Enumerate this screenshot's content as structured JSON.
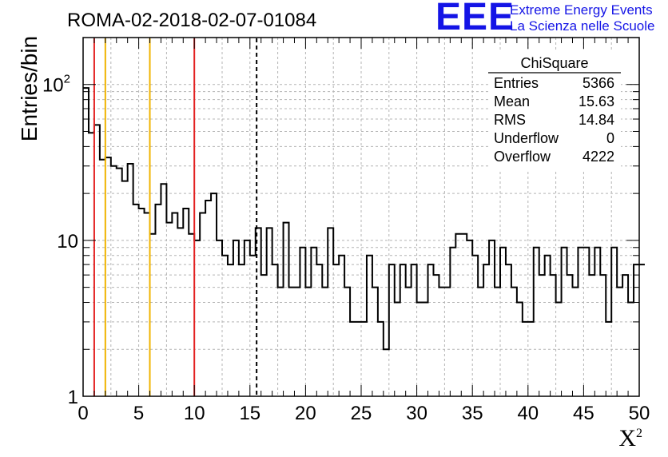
{
  "chart_data": {
    "type": "histogram",
    "title": "ROMA-02-2018-02-07-01084",
    "xlabel": "X",
    "xlabel_sup": "2",
    "ylabel": "Entries/bin",
    "xlim": [
      0,
      50
    ],
    "ylim": [
      1,
      200
    ],
    "yscale": "log",
    "grid": true,
    "bin_width": 0.5,
    "x_ticks": [
      "0",
      "5",
      "10",
      "15",
      "20",
      "25",
      "30",
      "35",
      "40",
      "45",
      "50"
    ],
    "y_ticks": [
      {
        "v": 1,
        "label": "1"
      },
      {
        "v": 10,
        "label": "10"
      },
      {
        "v": 100,
        "label": "10",
        "sup": "2"
      }
    ],
    "counts": [
      95,
      49,
      55,
      33,
      34,
      30,
      29,
      24,
      31,
      17,
      16,
      15,
      11,
      17,
      23,
      13,
      15,
      12,
      16,
      11,
      10,
      15,
      18,
      20,
      10,
      8,
      7,
      10,
      7,
      10,
      8,
      12,
      6,
      12,
      7,
      5,
      13,
      5,
      5,
      9,
      5,
      9,
      7,
      5,
      12,
      7,
      8,
      5,
      3,
      3,
      3,
      8,
      5,
      3,
      2,
      7,
      4,
      7,
      5,
      7,
      4,
      4,
      7,
      6,
      5,
      5,
      9,
      11,
      11,
      10,
      8,
      5,
      7,
      10,
      5,
      9,
      7,
      5,
      4,
      3,
      3,
      9,
      6,
      8,
      6,
      4,
      9,
      6,
      5,
      9,
      9,
      6,
      9,
      6,
      3,
      9,
      5,
      6,
      4,
      7,
      7
    ],
    "vlines": [
      {
        "x": 1,
        "color": "#e32020",
        "style": "solid"
      },
      {
        "x": 2,
        "color": "#f0b400",
        "style": "solid"
      },
      {
        "x": 6,
        "color": "#f0b400",
        "style": "solid"
      },
      {
        "x": 10,
        "color": "#e32020",
        "style": "solid"
      },
      {
        "x": 15.6,
        "color": "#000000",
        "style": "dashed"
      }
    ],
    "stats": {
      "name": "ChiSquare",
      "rows": [
        {
          "label": "Entries",
          "value": "5366"
        },
        {
          "label": "Mean",
          "value": "15.63"
        },
        {
          "label": "RMS",
          "value": "14.84"
        },
        {
          "label": "Underflow",
          "value": "0"
        },
        {
          "label": "Overflow",
          "value": "4222"
        }
      ]
    }
  },
  "logo": {
    "big": "EEE",
    "line1": "Extreme Energy Events",
    "line2": "La Scienza nelle Scuole",
    "color": "#1414e6"
  }
}
